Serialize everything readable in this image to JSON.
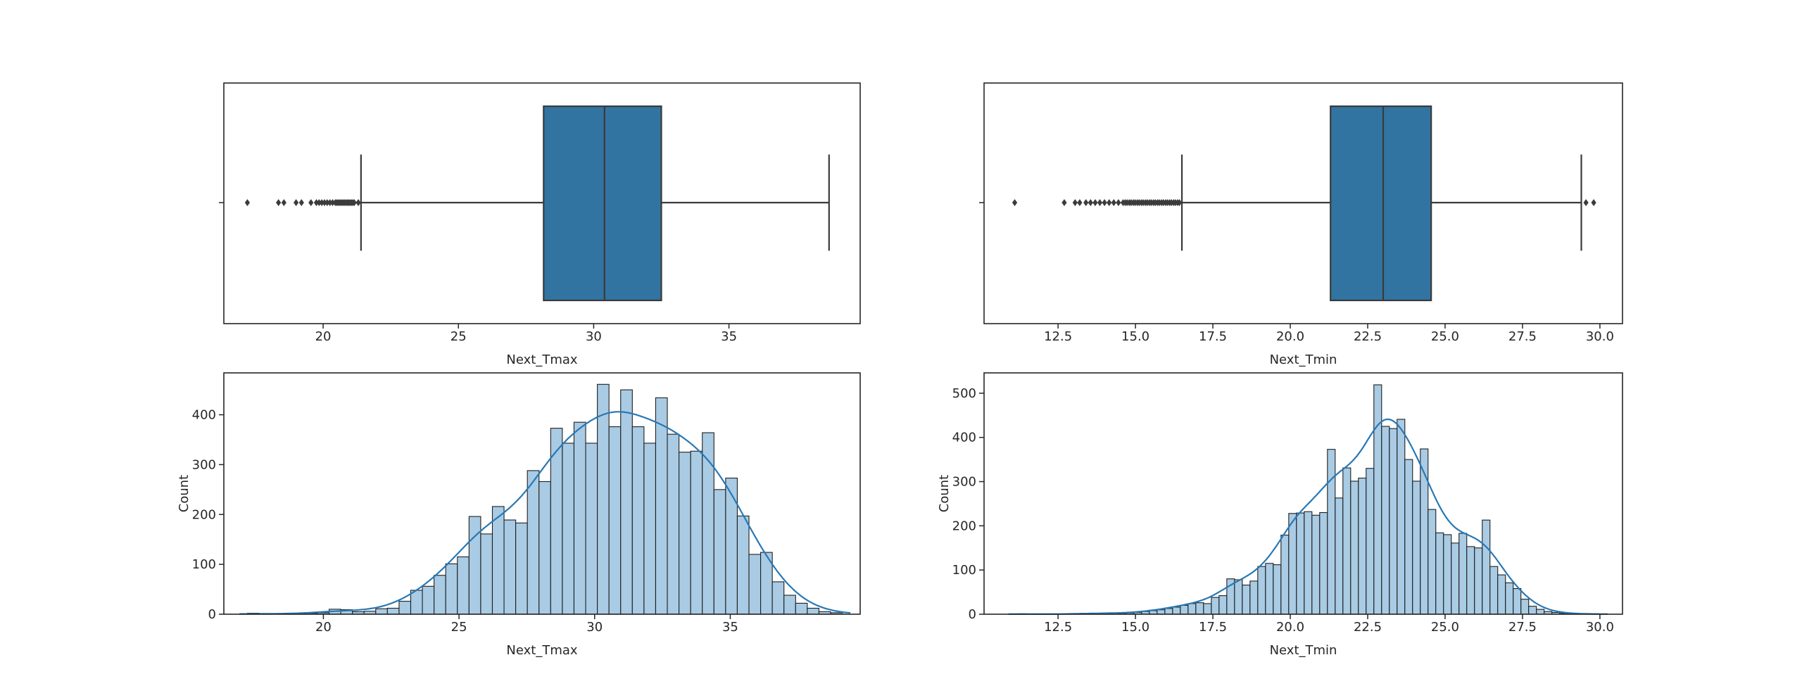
{
  "figure": {
    "background": "#ffffff",
    "colors": {
      "box_fill": "#3274A1",
      "box_edge": "#3A3A3A",
      "whisker": "#3A3A3A",
      "flier": "#3B3B3B",
      "hist_fill": "#A9CBE4",
      "hist_edge": "#1F1F1F",
      "kde_line": "#2878B5",
      "axis": "#262626",
      "text": "#262626"
    }
  },
  "chart_data": [
    {
      "id": "boxplot-next-tmax",
      "type": "boxplot",
      "orientation": "horizontal",
      "xlabel": "Next_Tmax",
      "xlim": [
        16.33,
        39.85
      ],
      "xticks": {
        "values": [
          20,
          25,
          30,
          35
        ],
        "labels": [
          "20",
          "25",
          "30",
          "35"
        ]
      },
      "box": {
        "q1": 28.15,
        "median": 30.4,
        "q3": 32.5,
        "whisker_low": 21.4,
        "whisker_high": 38.7
      },
      "outliers": [
        17.2,
        18.35,
        18.55,
        19.0,
        19.2,
        19.55,
        19.75,
        19.85,
        19.95,
        20.05,
        20.15,
        20.25,
        20.35,
        20.45,
        20.5,
        20.55,
        20.6,
        20.65,
        20.7,
        20.75,
        20.8,
        20.85,
        20.9,
        20.95,
        21.0,
        21.05,
        21.1,
        21.15,
        21.3
      ]
    },
    {
      "id": "boxplot-next-tmin",
      "type": "boxplot",
      "orientation": "horizontal",
      "xlabel": "Next_Tmin",
      "xlim": [
        10.11,
        30.73
      ],
      "xticks": {
        "values": [
          12.5,
          15.0,
          17.5,
          20.0,
          22.5,
          25.0,
          27.5,
          30.0
        ],
        "labels": [
          "12.5",
          "15.0",
          "17.5",
          "20.0",
          "22.5",
          "25.0",
          "27.5",
          "30.0"
        ]
      },
      "box": {
        "q1": 21.3,
        "median": 23.0,
        "q3": 24.55,
        "whisker_low": 16.5,
        "whisker_high": 29.4
      },
      "outliers": [
        11.1,
        12.7,
        13.05,
        13.2,
        13.4,
        13.55,
        13.7,
        13.85,
        14.0,
        14.15,
        14.3,
        14.45,
        14.6,
        14.67,
        14.73,
        14.8,
        14.86,
        14.93,
        14.99,
        15.06,
        15.12,
        15.19,
        15.25,
        15.32,
        15.38,
        15.45,
        15.51,
        15.58,
        15.64,
        15.71,
        15.77,
        15.84,
        15.9,
        15.97,
        16.03,
        16.1,
        16.16,
        16.23,
        16.29,
        16.36,
        16.42,
        29.55,
        29.8
      ]
    },
    {
      "id": "histogram-next-tmax",
      "type": "histogram_kde",
      "xlabel": "Next_Tmax",
      "ylabel": "Count",
      "xlim": [
        16.33,
        39.79
      ],
      "ylim": [
        0,
        484
      ],
      "xticks": {
        "values": [
          20,
          25,
          30,
          35
        ],
        "labels": [
          "20",
          "25",
          "30",
          "35"
        ]
      },
      "yticks": {
        "values": [
          0,
          100,
          200,
          300,
          400
        ],
        "labels": [
          "0",
          "100",
          "200",
          "300",
          "400"
        ]
      },
      "bins": {
        "start": 17.2,
        "width": 0.43
      },
      "counts": [
        2,
        1,
        0,
        1,
        1,
        2,
        3,
        10,
        9,
        5,
        6,
        11,
        12,
        26,
        48,
        56,
        78,
        101,
        115,
        196,
        161,
        216,
        189,
        183,
        288,
        266,
        373,
        343,
        385,
        343,
        461,
        376,
        450,
        376,
        343,
        434,
        361,
        325,
        327,
        364,
        250,
        273,
        197,
        120,
        124,
        65,
        38,
        22,
        12,
        5,
        3
      ],
      "kde": {
        "bandwidth": 0.85,
        "peak": 406
      }
    },
    {
      "id": "histogram-next-tmin",
      "type": "histogram_kde",
      "xlabel": "Next_Tmin",
      "ylabel": "Count",
      "xlim": [
        10.11,
        30.73
      ],
      "ylim": [
        0,
        546
      ],
      "xticks": {
        "values": [
          12.5,
          15.0,
          17.5,
          20.0,
          22.5,
          25.0,
          27.5,
          30.0
        ],
        "labels": [
          "12.5",
          "15.0",
          "17.5",
          "20.0",
          "22.5",
          "25.0",
          "27.5",
          "30.0"
        ]
      },
      "yticks": {
        "values": [
          0,
          100,
          200,
          300,
          400,
          500
        ],
        "labels": [
          "0",
          "100",
          "200",
          "300",
          "400",
          "500"
        ]
      },
      "bins": {
        "start": 11.2,
        "width": 0.25
      },
      "counts": [
        1,
        0,
        0,
        0,
        0,
        0,
        0,
        1,
        2,
        1,
        2,
        2,
        3,
        2,
        3,
        4,
        6,
        8,
        10,
        13,
        16,
        20,
        24,
        26,
        24,
        38,
        42,
        80,
        78,
        66,
        75,
        108,
        115,
        112,
        179,
        228,
        229,
        232,
        224,
        230,
        373,
        263,
        331,
        301,
        308,
        330,
        519,
        425,
        420,
        441,
        350,
        301,
        374,
        237,
        184,
        180,
        161,
        183,
        153,
        150,
        213,
        108,
        89,
        71,
        58,
        34,
        18,
        11,
        6,
        4,
        2,
        1,
        1,
        0,
        1
      ],
      "kde": {
        "bandwidth": 0.5,
        "peak": 441
      }
    }
  ]
}
